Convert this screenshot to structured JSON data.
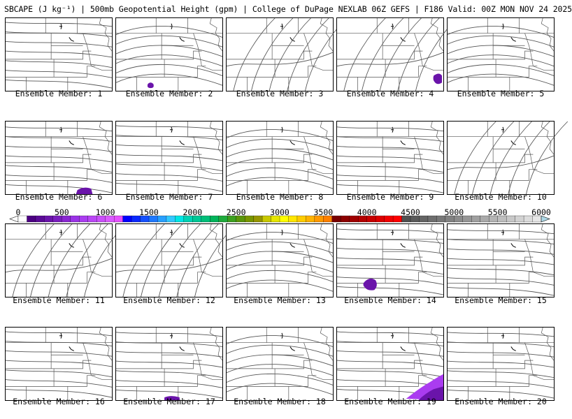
{
  "header": {
    "title": "SBCAPE (J kg⁻¹) | 500mb Geopotential Height (gpm) | College of DuPage NEXLAB 06Z GEFS | F186 Valid: 00Z MON NOV 24 2025"
  },
  "colorbar": {
    "ticks": [
      "0",
      "500",
      "1000",
      "1500",
      "2000",
      "2500",
      "3000",
      "3500",
      "4000",
      "4500",
      "5000",
      "5500",
      "6000"
    ],
    "min": 0,
    "max": 6000,
    "colors": [
      "#ffffff",
      "#4b0082",
      "#5a0a96",
      "#6a14aa",
      "#7a1ebe",
      "#8a28d2",
      "#9a32e6",
      "#aa3cf0",
      "#ba46f5",
      "#ca50fa",
      "#da5aff",
      "#e650ff",
      "#0000ff",
      "#0a28ff",
      "#1450ff",
      "#1e78ff",
      "#28a0ff",
      "#32c8ff",
      "#00e5e5",
      "#00d2b4",
      "#00c896",
      "#00be78",
      "#00b45a",
      "#1eaa3c",
      "#3ca01e",
      "#5a960a",
      "#789600",
      "#969600",
      "#c8c800",
      "#e6e600",
      "#ffff00",
      "#ffe600",
      "#ffcc00",
      "#ffb300",
      "#ff9900",
      "#ff8000",
      "#780000",
      "#8c0000",
      "#a00000",
      "#b40000",
      "#c80000",
      "#dc0000",
      "#f00000",
      "#ff0000",
      "#505050",
      "#5a5a5a",
      "#646464",
      "#6e6e6e",
      "#787878",
      "#828282",
      "#8c8c8c",
      "#969696",
      "#a0a0a0",
      "#aaaaaa",
      "#b4b4b4",
      "#bebebe",
      "#c8c8c8",
      "#d2d2d2",
      "#dcdcdc",
      "#e6e6e6"
    ]
  },
  "panels": [
    {
      "label": "Ensemble Member: 1"
    },
    {
      "label": "Ensemble Member: 2"
    },
    {
      "label": "Ensemble Member: 3"
    },
    {
      "label": "Ensemble Member: 4"
    },
    {
      "label": "Ensemble Member: 5"
    },
    {
      "label": "Ensemble Member: 6"
    },
    {
      "label": "Ensemble Member: 7"
    },
    {
      "label": "Ensemble Member: 8"
    },
    {
      "label": "Ensemble Member: 9"
    },
    {
      "label": "Ensemble Member: 10"
    },
    {
      "label": "Ensemble Member: 11"
    },
    {
      "label": "Ensemble Member: 12"
    },
    {
      "label": "Ensemble Member: 13"
    },
    {
      "label": "Ensemble Member: 14"
    },
    {
      "label": "Ensemble Member: 15"
    },
    {
      "label": "Ensemble Member: 16"
    },
    {
      "label": "Ensemble Member: 17"
    },
    {
      "label": "Ensemble Member: 18"
    },
    {
      "label": "Ensemble Member: 19"
    },
    {
      "label": "Ensemble Member: 20"
    }
  ],
  "colors": {
    "contour": "#555555",
    "border": "#000000",
    "cape_low": "#6a14aa",
    "cape_mid": "#aa3cf0"
  }
}
